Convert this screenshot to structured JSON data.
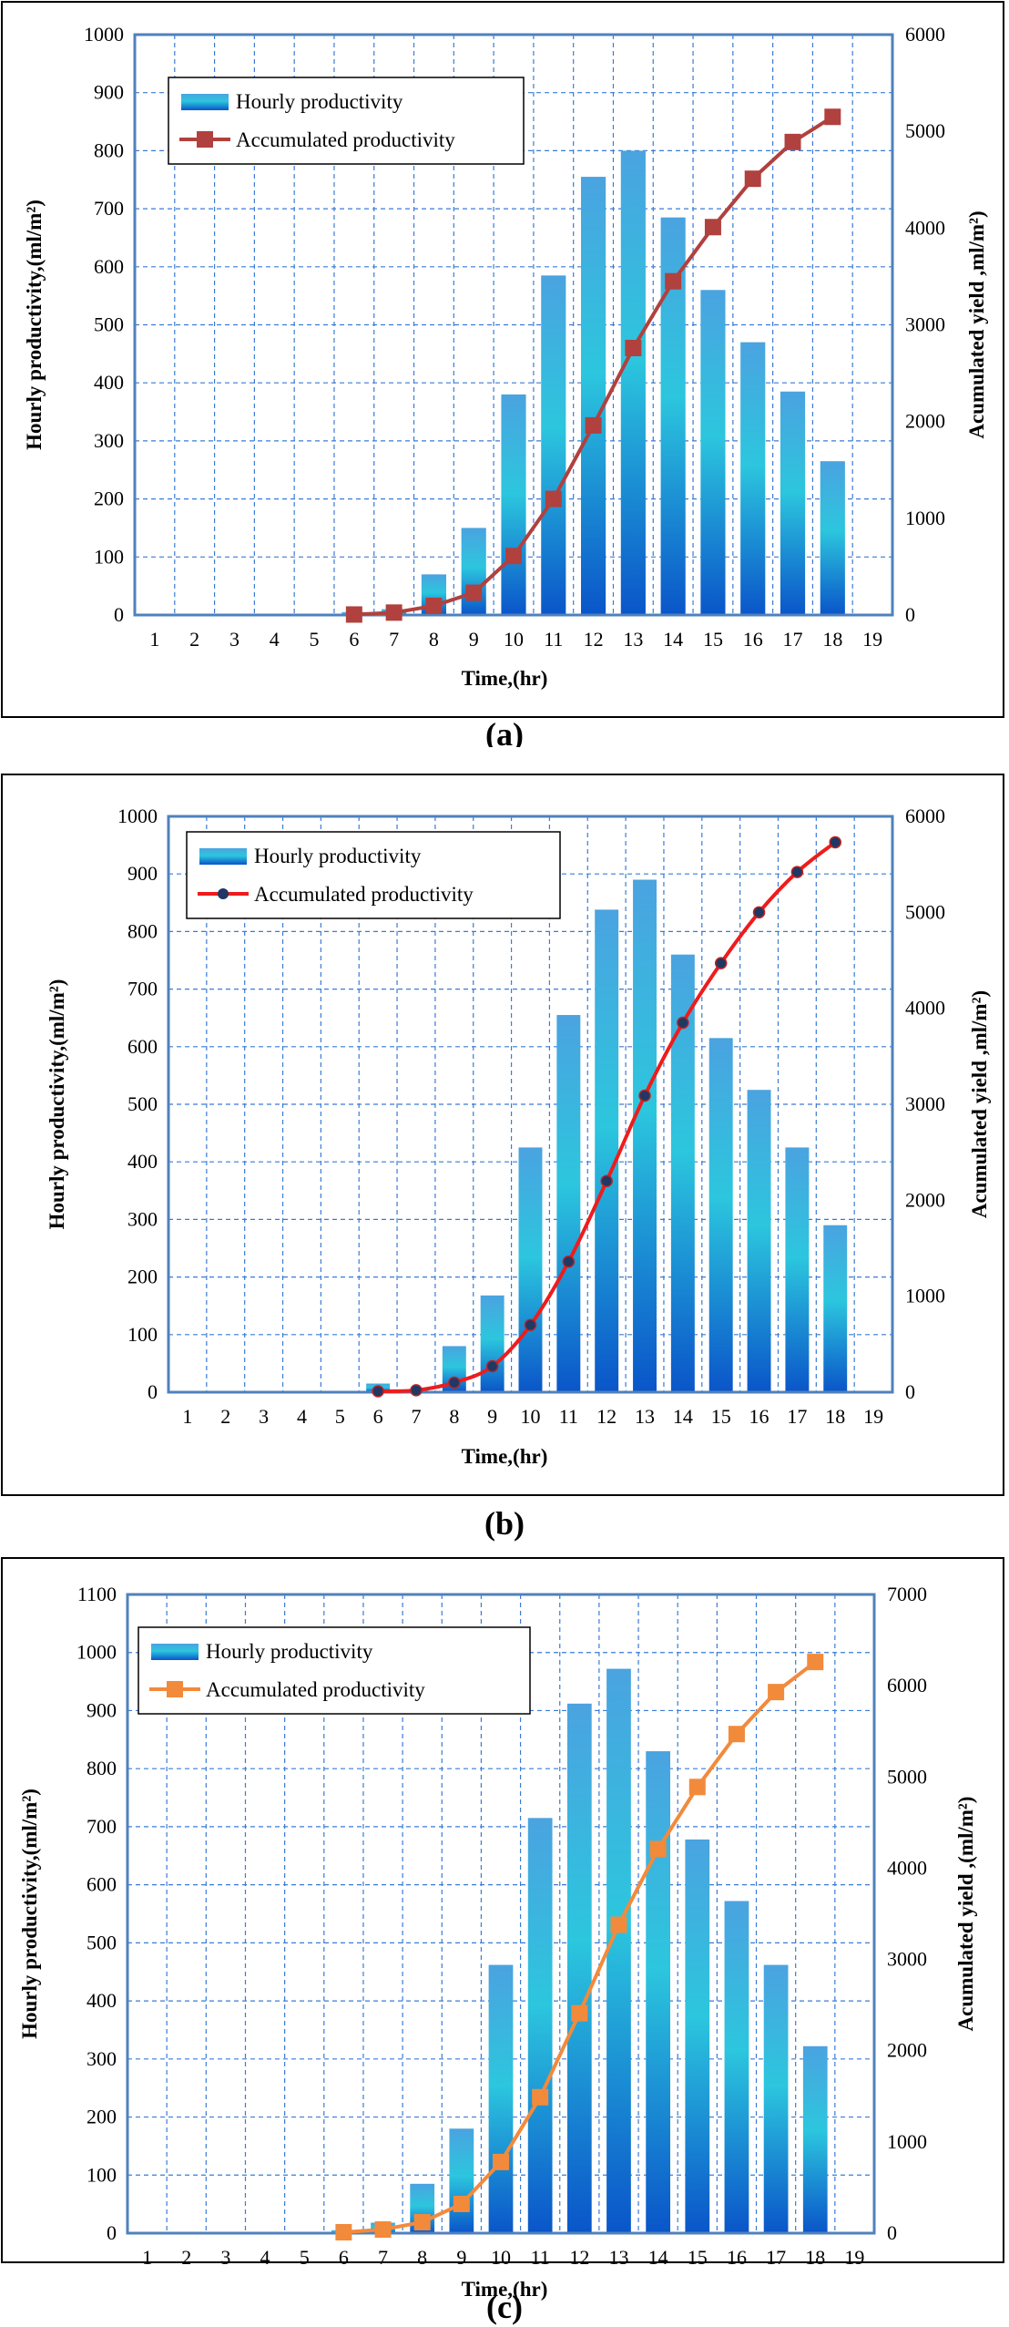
{
  "chart_data": [
    {
      "type": "bar",
      "caption": "(a)",
      "categories": [
        "1",
        "2",
        "3",
        "4",
        "5",
        "6",
        "7",
        "8",
        "9",
        "10",
        "11",
        "12",
        "13",
        "14",
        "15",
        "16",
        "17",
        "18",
        "19"
      ],
      "xlabel": "Time,(hr)",
      "ylabel": "Hourly  productivity,(ml/m²)",
      "y2label": "Acumulated yield ,ml/m²)",
      "ylim": [
        0,
        1000
      ],
      "y2lim": [
        0,
        6000
      ],
      "yticks": [
        "0",
        "100",
        "200",
        "300",
        "400",
        "500",
        "600",
        "700",
        "800",
        "900",
        "1000"
      ],
      "y2ticks": [
        "0",
        "1000",
        "2000",
        "3000",
        "4000",
        "5000",
        "6000"
      ],
      "grid": true,
      "legend_position": "top-left",
      "series": [
        {
          "name": "Hourly productivity",
          "kind": "bar",
          "axis": "left",
          "x": [
            6,
            7,
            8,
            9,
            10,
            11,
            12,
            13,
            14,
            15,
            16,
            17,
            18
          ],
          "values": [
            5,
            10,
            70,
            150,
            380,
            585,
            755,
            800,
            685,
            560,
            470,
            385,
            265
          ]
        },
        {
          "name": "Accumulated productivity",
          "kind": "line",
          "axis": "right",
          "marker": "square",
          "x": [
            6,
            7,
            8,
            9,
            10,
            11,
            12,
            13,
            14,
            15,
            16,
            17,
            18
          ],
          "values": [
            5,
            25,
            95,
            230,
            610,
            1200,
            1960,
            2760,
            3450,
            4010,
            4510,
            4890,
            5150
          ]
        }
      ],
      "colors": {
        "bar": "#1e8fd8",
        "line": "#b0413e",
        "marker": "#b0413e",
        "frame": "#000000",
        "plot_border": "#4f81bd",
        "grid": "#3a7bd5"
      }
    },
    {
      "type": "bar",
      "caption": "(b)",
      "categories": [
        "1",
        "2",
        "3",
        "4",
        "5",
        "6",
        "7",
        "8",
        "9",
        "10",
        "11",
        "12",
        "13",
        "14",
        "15",
        "16",
        "17",
        "18",
        "19"
      ],
      "xlabel": "Time,(hr)",
      "ylabel": "Hourly  productivity,(ml/m²)",
      "y2label": "Acumulated yield ,ml/m²)",
      "ylim": [
        0,
        1000
      ],
      "y2lim": [
        0,
        6000
      ],
      "yticks": [
        "0",
        "100",
        "200",
        "300",
        "400",
        "500",
        "600",
        "700",
        "800",
        "900",
        "1000"
      ],
      "y2ticks": [
        "0",
        "1000",
        "2000",
        "3000",
        "4000",
        "5000",
        "6000"
      ],
      "grid": true,
      "legend_position": "top-left",
      "series": [
        {
          "name": "Hourly productivity",
          "kind": "bar",
          "axis": "left",
          "x": [
            6,
            7,
            8,
            9,
            10,
            11,
            12,
            13,
            14,
            15,
            16,
            17,
            18
          ],
          "values": [
            15,
            5,
            80,
            168,
            425,
            655,
            838,
            890,
            760,
            615,
            525,
            425,
            290
          ]
        },
        {
          "name": "Accumulated productivity",
          "kind": "line",
          "axis": "right",
          "marker": "circle",
          "smooth": true,
          "x": [
            6,
            7,
            8,
            9,
            10,
            11,
            12,
            13,
            14,
            15,
            16,
            17,
            18
          ],
          "values": [
            10,
            20,
            100,
            270,
            700,
            1360,
            2200,
            3090,
            3850,
            4470,
            5000,
            5420,
            5730
          ]
        }
      ],
      "colors": {
        "bar": "#1e8fd8",
        "line": "#ee1c1c",
        "marker": "#1f3864",
        "frame": "#000000",
        "plot_border": "#4f81bd",
        "grid": "#3a7bd5"
      }
    },
    {
      "type": "bar",
      "caption": "(c)",
      "categories": [
        "1",
        "2",
        "3",
        "4",
        "5",
        "6",
        "7",
        "8",
        "9",
        "10",
        "11",
        "12",
        "13",
        "14",
        "15",
        "16",
        "17",
        "18",
        "19"
      ],
      "xlabel": "Time,(hr)",
      "ylabel": "Hourly  productivity,(ml/m²)",
      "y2label": "Acumulated yield ,(ml/m²)",
      "ylim": [
        0,
        1100
      ],
      "y2lim": [
        0,
        7000
      ],
      "yticks": [
        "0",
        "100",
        "200",
        "300",
        "400",
        "500",
        "600",
        "700",
        "800",
        "900",
        "1000",
        "1100"
      ],
      "y2ticks": [
        "0",
        "1000",
        "2000",
        "3000",
        "4000",
        "5000",
        "6000",
        "7000"
      ],
      "grid": true,
      "legend_position": "top-left",
      "series": [
        {
          "name": "Hourly productivity",
          "kind": "bar",
          "axis": "left",
          "x": [
            6,
            7,
            8,
            9,
            10,
            11,
            12,
            13,
            14,
            15,
            16,
            17,
            18
          ],
          "values": [
            5,
            18,
            85,
            180,
            462,
            715,
            912,
            972,
            830,
            678,
            572,
            462,
            322
          ]
        },
        {
          "name": "Accumulated productivity",
          "kind": "line",
          "axis": "right",
          "marker": "square",
          "x": [
            6,
            7,
            8,
            9,
            10,
            11,
            12,
            13,
            14,
            15,
            16,
            17,
            18
          ],
          "values": [
            10,
            40,
            120,
            320,
            780,
            1490,
            2410,
            3380,
            4210,
            4890,
            5470,
            5930,
            6260
          ]
        }
      ],
      "colors": {
        "bar": "#1e8fd8",
        "line": "#f28a3c",
        "marker": "#f28a3c",
        "frame": "#000000",
        "plot_border": "#4f81bd",
        "grid": "#3a7bd5"
      }
    }
  ]
}
